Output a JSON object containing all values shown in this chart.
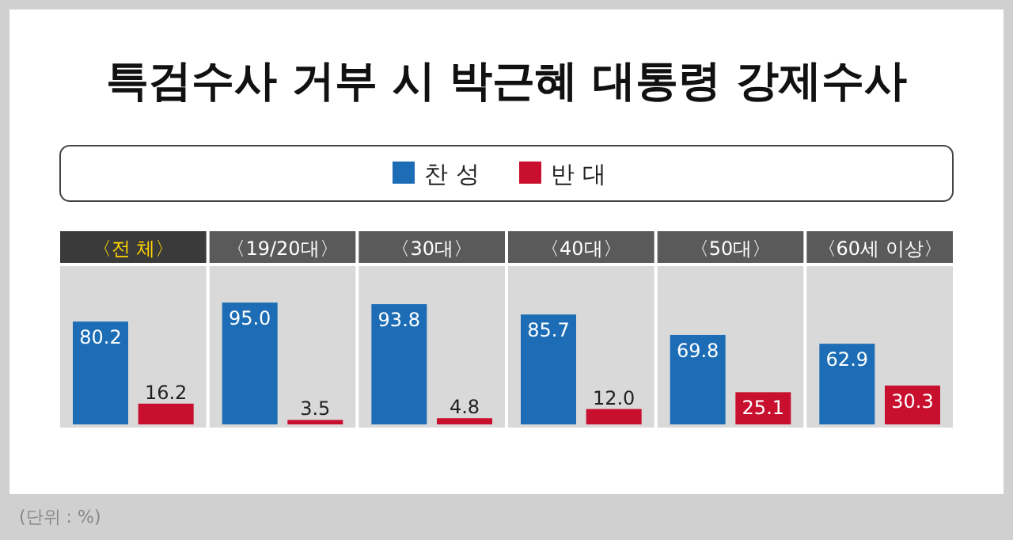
{
  "chart_data": {
    "type": "bar",
    "title": "특검수사 거부 시 박근혜 대통령 강제수사",
    "categories": [
      "〈전 체〉",
      "〈19/20대〉",
      "〈30대〉",
      "〈40대〉",
      "〈50대〉",
      "〈60세 이상〉"
    ],
    "series": [
      {
        "name": "찬 성",
        "color": "#1c6db5",
        "values": [
          80.2,
          95.0,
          93.8,
          85.7,
          69.8,
          62.9
        ],
        "value_labels": [
          "80.2",
          "95.0",
          "93.8",
          "85.7",
          "69.8",
          "62.9"
        ]
      },
      {
        "name": "반 대",
        "color": "#c8102e",
        "values": [
          16.2,
          3.5,
          4.8,
          12.0,
          25.1,
          30.3
        ],
        "value_labels": [
          "16.2",
          "3.5",
          "4.8",
          "12.0",
          "25.1",
          "30.3"
        ]
      }
    ],
    "legend": "top",
    "grid": false,
    "annotations": [
      "(단위 : %)"
    ]
  }
}
